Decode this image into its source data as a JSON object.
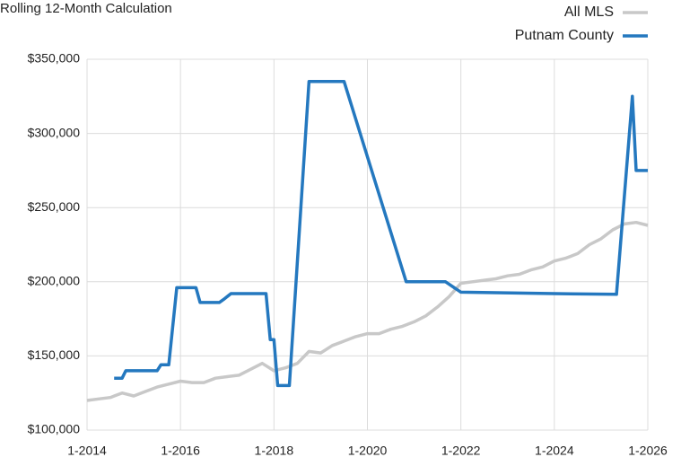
{
  "chart_data": {
    "type": "line",
    "title": "Rolling 12-Month Calculation",
    "xlim": [
      2014,
      2026
    ],
    "xticks": [
      {
        "value": 2014,
        "label": "1-2014"
      },
      {
        "value": 2016,
        "label": "1-2016"
      },
      {
        "value": 2018,
        "label": "1-2018"
      },
      {
        "value": 2020,
        "label": "1-2020"
      },
      {
        "value": 2022,
        "label": "1-2022"
      },
      {
        "value": 2024,
        "label": "1-2024"
      },
      {
        "value": 2026,
        "label": "1-2026"
      }
    ],
    "ylim": [
      100000,
      350000
    ],
    "yticks": [
      {
        "value": 100000,
        "label": "$100,000"
      },
      {
        "value": 150000,
        "label": "$150,000"
      },
      {
        "value": 200000,
        "label": "$200,000"
      },
      {
        "value": 250000,
        "label": "$250,000"
      },
      {
        "value": 300000,
        "label": "$300,000"
      },
      {
        "value": 350000,
        "label": "$350,000"
      }
    ],
    "grid": true,
    "legend": "top-right",
    "series": [
      {
        "name": "All MLS",
        "color": "#c8c8c8",
        "x": [
          2014.0,
          2014.25,
          2014.5,
          2014.75,
          2015.0,
          2015.25,
          2015.5,
          2015.75,
          2016.0,
          2016.25,
          2016.5,
          2016.75,
          2017.0,
          2017.25,
          2017.5,
          2017.75,
          2018.0,
          2018.25,
          2018.5,
          2018.75,
          2019.0,
          2019.25,
          2019.5,
          2019.75,
          2020.0,
          2020.25,
          2020.5,
          2020.75,
          2021.0,
          2021.25,
          2021.5,
          2021.75,
          2022.0,
          2022.25,
          2022.5,
          2022.75,
          2023.0,
          2023.25,
          2023.5,
          2023.75,
          2024.0,
          2024.25,
          2024.5,
          2024.75,
          2025.0,
          2025.25,
          2025.5,
          2025.75,
          2026.0
        ],
        "values": [
          120000,
          121000,
          122000,
          125000,
          123000,
          126000,
          129000,
          131000,
          133000,
          132000,
          132000,
          135000,
          136000,
          137000,
          141000,
          145000,
          140000,
          142000,
          145000,
          153000,
          152000,
          157000,
          160000,
          163000,
          165000,
          165000,
          168000,
          170000,
          173000,
          177000,
          183000,
          190000,
          199000,
          200000,
          201000,
          202000,
          204000,
          205000,
          208000,
          210000,
          214000,
          216000,
          219000,
          225000,
          229000,
          235000,
          239000,
          240000,
          238000
        ]
      },
      {
        "name": "Putnam County",
        "color": "#2478bf",
        "x": [
          2014.58,
          2014.75,
          2014.83,
          2015.5,
          2015.58,
          2015.75,
          2015.92,
          2016.33,
          2016.42,
          2016.83,
          2016.92,
          2017.08,
          2017.83,
          2017.92,
          2018.0,
          2018.08,
          2018.33,
          2018.75,
          2019.5,
          2020.83,
          2021.67,
          2022.0,
          2024.0,
          2025.33,
          2025.67,
          2025.75,
          2026.0
        ],
        "values": [
          135000,
          135000,
          140000,
          140000,
          144000,
          144000,
          196000,
          196000,
          186000,
          186000,
          188000,
          192000,
          192000,
          161000,
          161000,
          130000,
          130000,
          335000,
          335000,
          200000,
          200000,
          193000,
          192000,
          191500,
          325000,
          275000,
          275000
        ]
      }
    ]
  }
}
